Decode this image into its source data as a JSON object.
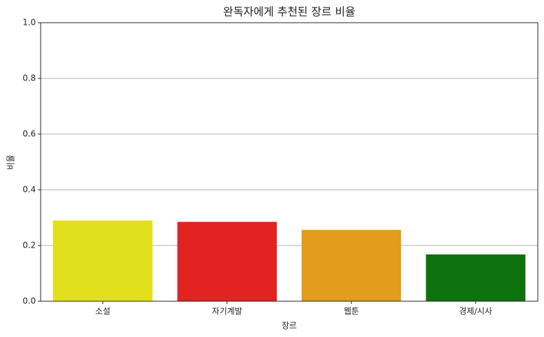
{
  "chart_data": {
    "type": "bar",
    "title": "완독자에게 추천된 장르 비율",
    "x_label": "장르",
    "y_label": "비율",
    "categories": [
      "소설",
      "자기계발",
      "웹툰",
      "경제/시사"
    ],
    "values": [
      0.29,
      0.285,
      0.256,
      0.168
    ],
    "colors": [
      "#e2e01c",
      "#e32222",
      "#e09c1a",
      "#0d720d"
    ],
    "ylim": [
      0,
      1
    ],
    "yticks": [
      {
        "value": 0,
        "label": "0.0"
      },
      0.2,
      0.4,
      0.6,
      0.8,
      {
        "value": 1,
        "label": "1.0"
      }
    ],
    "grid": true
  }
}
